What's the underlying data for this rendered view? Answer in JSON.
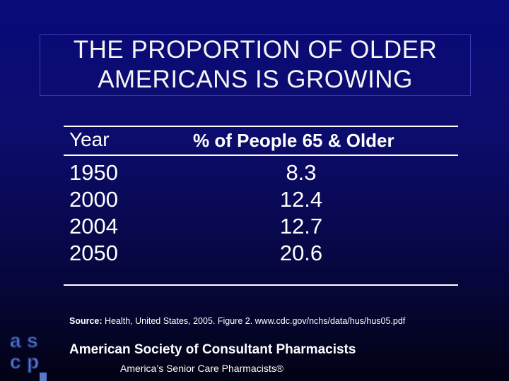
{
  "title": {
    "line1": "THE PROPORTION OF OLDER",
    "line2": "AMERICANS IS GROWING"
  },
  "table": {
    "headers": {
      "year": "Year",
      "percent": "% of People 65 & Older"
    },
    "rows": [
      {
        "year": "1950",
        "value": "8.3"
      },
      {
        "year": "2000",
        "value": "12.4"
      },
      {
        "year": "2004",
        "value": "12.7"
      },
      {
        "year": "2050",
        "value": "20.6"
      }
    ]
  },
  "source": {
    "label": "Source:",
    "text": "Health, United States, 2005. Figure 2.  www.cdc.gov/nchs/data/hus/hus05.pdf"
  },
  "footer": {
    "organization": "American Society of Consultant  Pharmacists",
    "tagline": "America’s Senior Care Pharmacists®"
  },
  "logo": {
    "text": "ascp",
    "icon": "ascp-logo-icon"
  },
  "colors": {
    "background": "#0a0a7a",
    "text": "#ffffff",
    "title_border": "#3a3ab0"
  }
}
